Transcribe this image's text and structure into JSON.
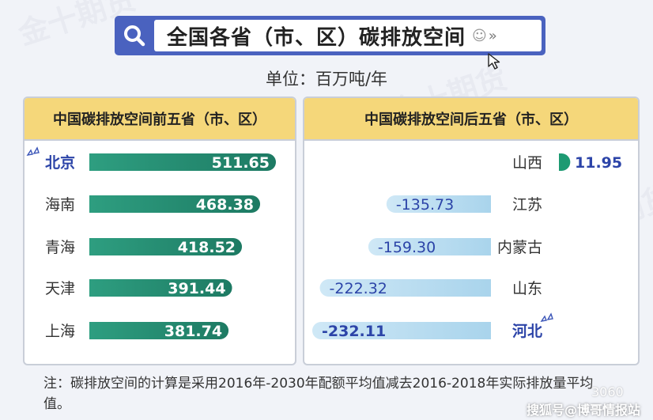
{
  "header": {
    "title": "全国各省（市、区）碳排放空间",
    "unit_label": "单位：百万吨/年"
  },
  "watermark_text": "金十期货",
  "panels": {
    "left_title": "中国碳排放空间前五省（市、区）",
    "right_title": "中国碳排放空间后五省（市、区）"
  },
  "chart_data": [
    {
      "type": "bar",
      "orientation": "horizontal",
      "title": "中国碳排放空间前五省（市、区）",
      "categories": [
        "北京",
        "海南",
        "青海",
        "天津",
        "上海"
      ],
      "values": [
        511.65,
        468.38,
        418.52,
        391.44,
        381.74
      ],
      "labels": [
        "511.65",
        "468.38",
        "418.52",
        "391.44",
        "381.74"
      ],
      "highlight": "北京",
      "color_start": "#2e9e80",
      "color_end": "#1d7a63",
      "xlim": [
        0,
        511.65
      ]
    },
    {
      "type": "bar",
      "orientation": "horizontal",
      "title": "中国碳排放空间后五省（市、区）",
      "categories": [
        "山西",
        "江苏",
        "内蒙古",
        "山东",
        "河北"
      ],
      "values": [
        11.95,
        -135.73,
        -159.3,
        -222.32,
        -232.11
      ],
      "labels": [
        "11.95",
        "-135.73",
        "-159.30",
        "-222.32",
        "-232.11"
      ],
      "highlight": "河北",
      "color_positive": "#1d9a72",
      "color_negative": "#a9d4ec",
      "xlim": [
        -232.11,
        11.95
      ]
    }
  ],
  "footnote": "注：碳排放空间的计算是采用2016年-2030年配额平均值减去2016-2018年实际排放量平均值。",
  "credits": {
    "line1": "3060",
    "line2": "搜狐号@博哥情报站"
  },
  "icons": [
    "search-icon",
    "smile-icon",
    "double-chevron-icon",
    "cursor-icon",
    "sparkle-icon"
  ]
}
